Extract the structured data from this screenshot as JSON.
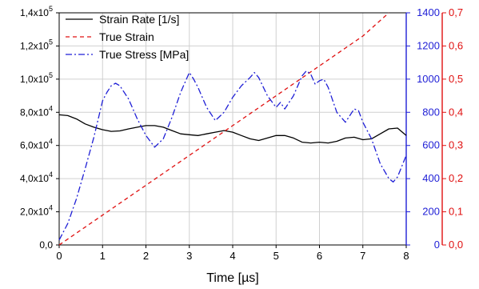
{
  "chart_data": {
    "type": "line",
    "xlabel": "Time [µs]",
    "xlim": [
      0,
      8
    ],
    "x_ticks": [
      "0",
      "1",
      "2",
      "3",
      "4",
      "5",
      "6",
      "7",
      "8"
    ],
    "grid": true,
    "legend_position": "top-left",
    "axes": {
      "left": {
        "color": "#000000",
        "ylim": [
          0,
          140000
        ],
        "tick_labels": [
          {
            "mantissa": "0,0",
            "exponent": ""
          },
          {
            "mantissa": "2,0x10",
            "exponent": "4"
          },
          {
            "mantissa": "4,0x10",
            "exponent": "4"
          },
          {
            "mantissa": "6,0x10",
            "exponent": "4"
          },
          {
            "mantissa": "8,0x10",
            "exponent": "4"
          },
          {
            "mantissa": "1,0x10",
            "exponent": "5"
          },
          {
            "mantissa": "1,2x10",
            "exponent": "5"
          },
          {
            "mantissa": "1,4x10",
            "exponent": "5"
          }
        ]
      },
      "right_blue": {
        "color": "#1f1fd6",
        "ylim": [
          0,
          1400
        ],
        "tick_labels": [
          "0",
          "200",
          "400",
          "600",
          "800",
          "1000",
          "1200",
          "1400"
        ]
      },
      "right_red": {
        "color": "#e01010",
        "ylim": [
          0,
          0.7
        ],
        "tick_labels": [
          "0,0",
          "0,1",
          "0,2",
          "0,3",
          "0,4",
          "0,5",
          "0,6",
          "0,7"
        ]
      }
    },
    "series": [
      {
        "name": "Strain Rate [1/s]",
        "axis": "left",
        "color": "#000000",
        "style": "solid",
        "x": [
          0,
          0.2,
          0.4,
          0.6,
          0.8,
          1.0,
          1.2,
          1.4,
          1.6,
          1.8,
          2.0,
          2.2,
          2.4,
          2.6,
          2.8,
          3.0,
          3.2,
          3.4,
          3.6,
          3.8,
          4.0,
          4.2,
          4.4,
          4.6,
          4.8,
          5.0,
          5.2,
          5.4,
          5.6,
          5.8,
          6.0,
          6.2,
          6.4,
          6.6,
          6.8,
          7.0,
          7.2,
          7.4,
          7.6,
          7.8,
          8.0
        ],
        "values": [
          78500,
          78000,
          76000,
          73000,
          71000,
          69500,
          68500,
          68800,
          70000,
          71000,
          72000,
          72000,
          71000,
          69000,
          67000,
          66500,
          66000,
          67000,
          68000,
          69000,
          68000,
          66000,
          64000,
          63000,
          64500,
          66000,
          66000,
          64500,
          62000,
          61500,
          62000,
          61500,
          62500,
          64500,
          65000,
          63500,
          64000,
          67000,
          70000,
          70500,
          66000
        ]
      },
      {
        "name": "True Strain",
        "axis": "right_red",
        "color": "#e01010",
        "style": "dashed",
        "x": [
          0,
          1,
          2,
          3,
          4,
          5,
          6,
          7,
          7.6
        ],
        "values": [
          0,
          0.09,
          0.18,
          0.27,
          0.36,
          0.45,
          0.54,
          0.63,
          0.7
        ]
      },
      {
        "name": "True Stress [MPa]",
        "axis": "right_blue",
        "color": "#1f1fd6",
        "style": "dashdot",
        "x": [
          0,
          0.2,
          0.4,
          0.6,
          0.8,
          1.0,
          1.1,
          1.2,
          1.3,
          1.4,
          1.6,
          1.8,
          2.0,
          2.2,
          2.4,
          2.6,
          2.8,
          2.9,
          3.0,
          3.1,
          3.2,
          3.4,
          3.6,
          3.8,
          4.0,
          4.2,
          4.4,
          4.5,
          4.6,
          4.8,
          5.0,
          5.1,
          5.2,
          5.4,
          5.6,
          5.7,
          5.8,
          5.9,
          6.0,
          6.1,
          6.2,
          6.4,
          6.6,
          6.8,
          6.9,
          7.0,
          7.2,
          7.4,
          7.6,
          7.7,
          7.8,
          8.0
        ],
        "values": [
          30,
          130,
          280,
          460,
          650,
          870,
          920,
          960,
          975,
          960,
          880,
          760,
          660,
          590,
          640,
          770,
          920,
          980,
          1040,
          1000,
          950,
          830,
          750,
          800,
          890,
          960,
          1010,
          1040,
          1010,
          900,
          830,
          860,
          820,
          900,
          1020,
          1050,
          1030,
          970,
          990,
          1000,
          950,
          800,
          740,
          820,
          810,
          740,
          640,
          490,
          400,
          380,
          410,
          540
        ]
      }
    ]
  }
}
